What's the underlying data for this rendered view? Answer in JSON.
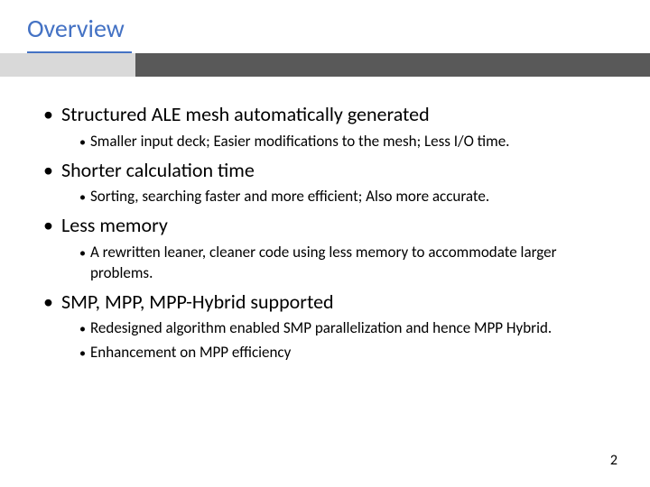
{
  "title": "Overview",
  "colors": {
    "title_color": "#4472c4",
    "underline_color": "#4472c4",
    "bar_light": "#d9d9d9",
    "bar_dark": "#595959",
    "text": "#000000",
    "background": "#ffffff"
  },
  "typography": {
    "title_fontsize": 28,
    "top_fontsize": 22,
    "sub_fontsize": 17,
    "pagenum_fontsize": 16,
    "font_family": "Calibri"
  },
  "bullets": [
    {
      "text": "Structured ALE mesh automatically generated",
      "subs": [
        "Smaller input deck;  Easier modifications to the mesh; Less I/O time."
      ]
    },
    {
      "text": "Shorter calculation time",
      "subs": [
        "Sorting, searching faster and more efficient;  Also more accurate."
      ]
    },
    {
      "text": "Less memory",
      "subs": [
        "A rewritten leaner, cleaner code using less memory to accommodate larger problems."
      ]
    },
    {
      "text": "SMP, MPP, MPP-Hybrid supported",
      "subs": [
        "Redesigned algorithm enabled SMP parallelization and hence MPP Hybrid.",
        "Enhancement on MPP efficiency"
      ]
    }
  ],
  "page_number": "2"
}
